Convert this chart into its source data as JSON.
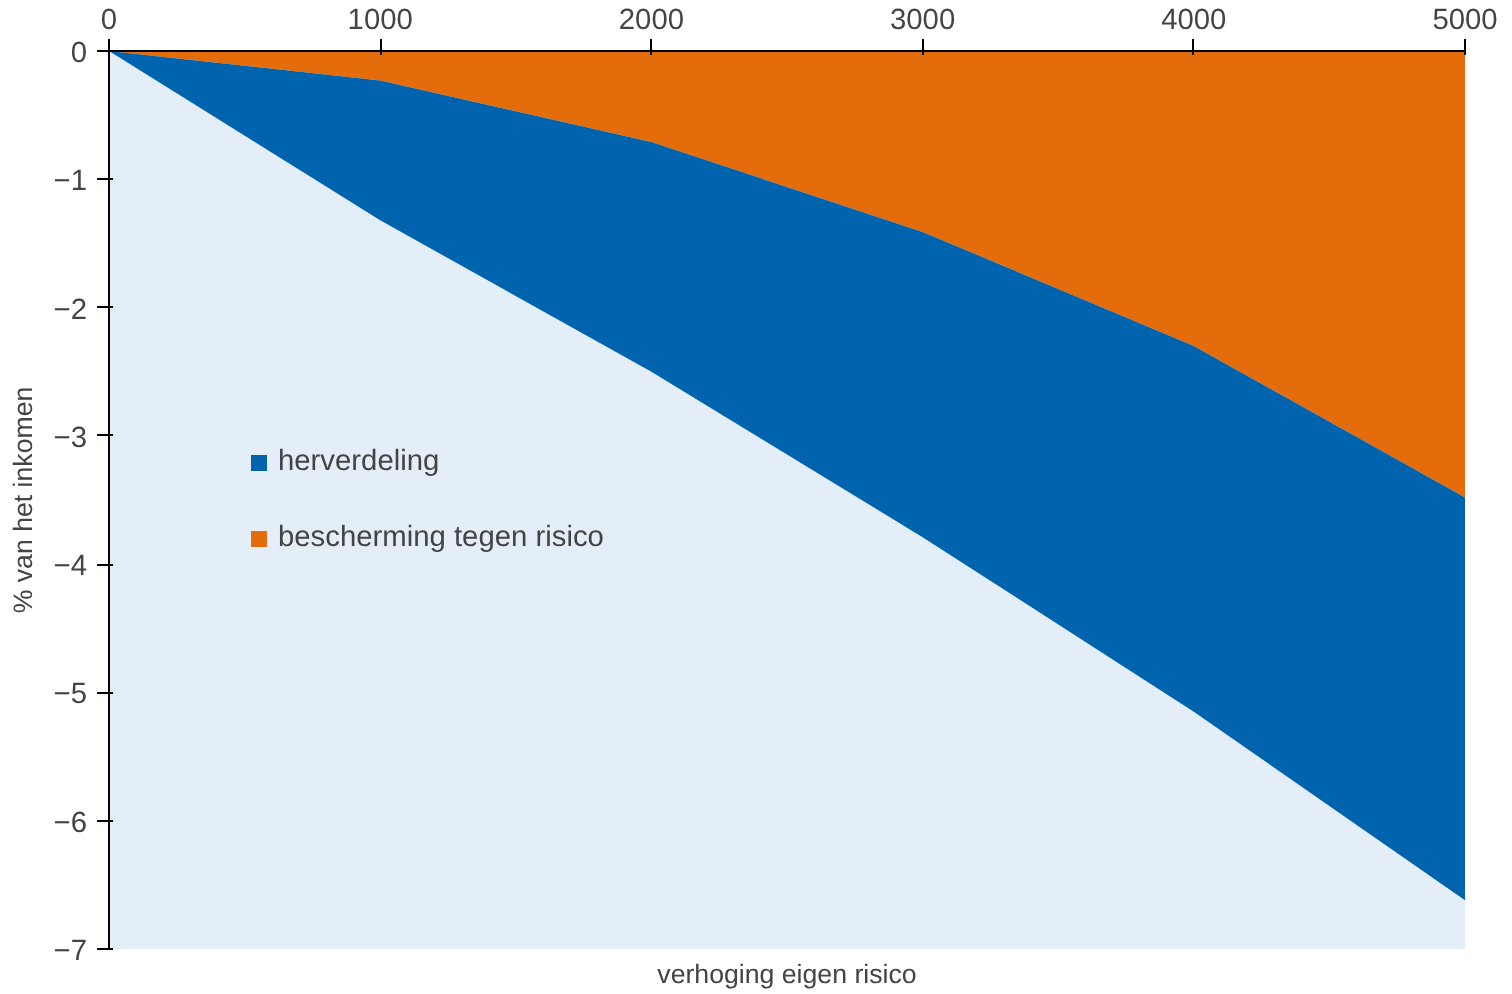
{
  "chart_data": {
    "type": "area",
    "stacked": true,
    "xlabel": "verhoging eigen risico",
    "ylabel": "% van het inkomen",
    "x": [
      0,
      1000,
      2000,
      3000,
      4000,
      5000
    ],
    "series": [
      {
        "name": "bescherming tegen risico",
        "color": "#e46c0a",
        "values": [
          0,
          -0.23,
          -0.71,
          -1.41,
          -2.3,
          -3.48
        ]
      },
      {
        "name": "herverdeling",
        "color": "#0063ae",
        "values": [
          0,
          -1.09,
          -1.79,
          -2.38,
          -2.85,
          -3.14
        ]
      }
    ],
    "xlim": [
      0,
      5000
    ],
    "xticks": [
      0,
      1000,
      2000,
      3000,
      4000,
      5000
    ],
    "ylim": [
      -7,
      0
    ],
    "yticks": [
      -7,
      -6,
      -5,
      -4,
      -3,
      -2,
      -1,
      0
    ],
    "grid": false,
    "legend": "left"
  }
}
